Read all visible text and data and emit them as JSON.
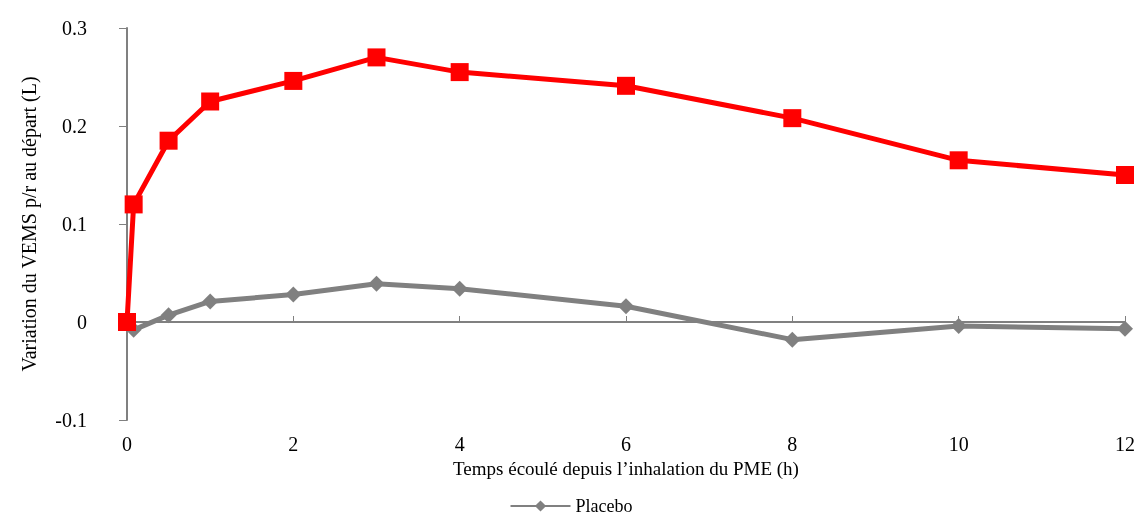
{
  "chart_data": {
    "type": "line",
    "xlabel": "Temps écoulé depuis l’inhalation du PME (h)",
    "ylabel": "Variation du VEMS p/r au départ (L)",
    "xlim": [
      0,
      12
    ],
    "xticks": [
      0,
      2,
      4,
      6,
      8,
      10,
      12
    ],
    "ylim": [
      -0.1,
      0.3
    ],
    "yticks": [
      -0.1,
      0,
      0.1,
      0.2,
      0.3
    ],
    "legend": "bottom",
    "series": [
      {
        "name": "Placebo",
        "color": "#808080",
        "marker": "diamond",
        "x": [
          0,
          0.08,
          0.5,
          1,
          2,
          3,
          4,
          6,
          8,
          10,
          12
        ],
        "values": [
          0,
          -0.008,
          0.007,
          0.021,
          0.028,
          0.039,
          0.034,
          0.016,
          -0.018,
          -0.004,
          -0.007
        ]
      },
      {
        "color": "#ff0000",
        "marker": "square",
        "x": [
          0,
          0.08,
          0.5,
          1,
          2,
          3,
          4,
          6,
          8,
          10,
          12
        ],
        "values": [
          0,
          0.12,
          0.185,
          0.225,
          0.246,
          0.27,
          0.255,
          0.241,
          0.208,
          0.165,
          0.15
        ]
      }
    ]
  }
}
